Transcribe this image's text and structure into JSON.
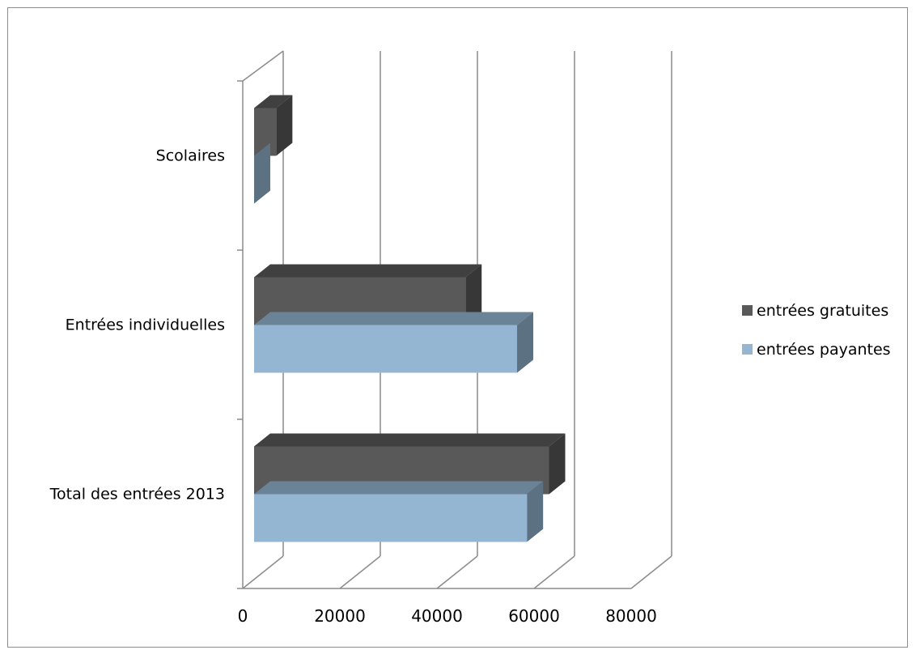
{
  "chart_data": {
    "type": "bar",
    "orientation": "horizontal",
    "style": "3d-clustered",
    "categories": [
      "Total des entrées 2013",
      "Entrées individuelles",
      "Scolaires"
    ],
    "series": [
      {
        "name": "entrées payantes",
        "color": "#94b6d2",
        "values": [
          55500,
          53500,
          0
        ]
      },
      {
        "name": "entrées gratuites",
        "color": "#595959",
        "values": [
          60000,
          43000,
          4500
        ]
      }
    ],
    "xticks": [
      "0",
      "20000",
      "40000",
      "60000",
      "80000"
    ],
    "xlim": [
      0,
      80000
    ],
    "grid": true,
    "legend_position": "right"
  }
}
